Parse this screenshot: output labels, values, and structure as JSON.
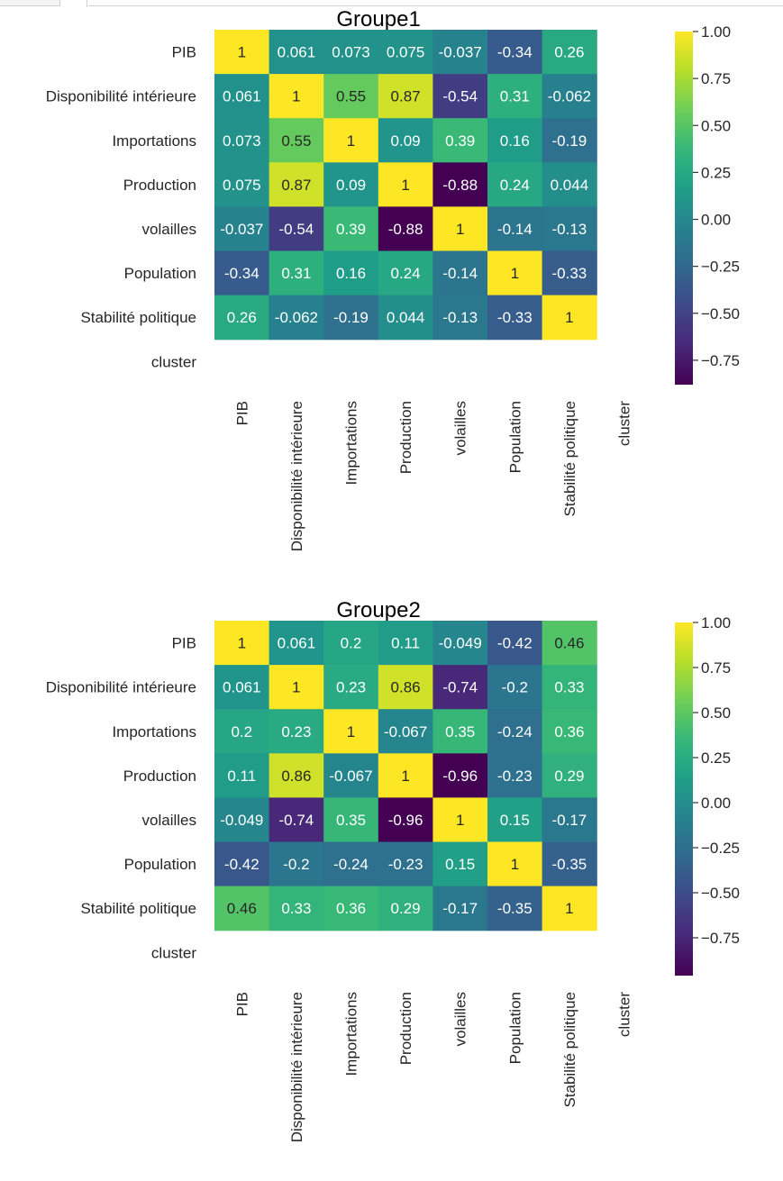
{
  "colormap": [
    "#440154",
    "#482878",
    "#3e4989",
    "#31688e",
    "#26828e",
    "#1f9e89",
    "#35b779",
    "#6ece58",
    "#b5de2b",
    "#fde725"
  ],
  "chart_data": [
    {
      "type": "heatmap",
      "title": "Groupe1",
      "row_labels": [
        "PIB",
        "Disponibilité intérieure",
        "Importations",
        "Production",
        "volailles",
        "Population",
        "Stabilité politique",
        "cluster"
      ],
      "col_labels": [
        "PIB",
        "Disponibilité intérieure",
        "Importations",
        "Production",
        "volailles",
        "Population",
        "Stabilité politique",
        "cluster"
      ],
      "cells": [
        [
          "1",
          "0.061",
          "0.073",
          "0.075",
          "-0.037",
          "-0.34",
          "0.26",
          null
        ],
        [
          "0.061",
          "1",
          "0.55",
          "0.87",
          "-0.54",
          "0.31",
          "-0.062",
          null
        ],
        [
          "0.073",
          "0.55",
          "1",
          "0.09",
          "0.39",
          "0.16",
          "-0.19",
          null
        ],
        [
          "0.075",
          "0.87",
          "0.09",
          "1",
          "-0.88",
          "0.24",
          "0.044",
          null
        ],
        [
          "-0.037",
          "-0.54",
          "0.39",
          "-0.88",
          "1",
          "-0.14",
          "-0.13",
          null
        ],
        [
          "-0.34",
          "0.31",
          "0.16",
          "0.24",
          "-0.14",
          "1",
          "-0.33",
          null
        ],
        [
          "0.26",
          "-0.062",
          "-0.19",
          "0.044",
          "-0.13",
          "-0.33",
          "1",
          null
        ],
        [
          null,
          null,
          null,
          null,
          null,
          null,
          null,
          null
        ]
      ],
      "colorbar_range": [
        -0.88,
        1.0
      ],
      "colorbar_ticks": [
        "1.00",
        "0.75",
        "0.50",
        "0.25",
        "0.00",
        "−0.25",
        "−0.50",
        "−0.75"
      ],
      "colorbar_tick_values": [
        1.0,
        0.75,
        0.5,
        0.25,
        0.0,
        -0.25,
        -0.5,
        -0.75
      ]
    },
    {
      "type": "heatmap",
      "title": "Groupe2",
      "row_labels": [
        "PIB",
        "Disponibilité intérieure",
        "Importations",
        "Production",
        "volailles",
        "Population",
        "Stabilité politique",
        "cluster"
      ],
      "col_labels": [
        "PIB",
        "Disponibilité intérieure",
        "Importations",
        "Production",
        "volailles",
        "Population",
        "Stabilité politique",
        "cluster"
      ],
      "cells": [
        [
          "1",
          "0.061",
          "0.2",
          "0.11",
          "-0.049",
          "-0.42",
          "0.46",
          null
        ],
        [
          "0.061",
          "1",
          "0.23",
          "0.86",
          "-0.74",
          "-0.2",
          "0.33",
          null
        ],
        [
          "0.2",
          "0.23",
          "1",
          "-0.067",
          "0.35",
          "-0.24",
          "0.36",
          null
        ],
        [
          "0.11",
          "0.86",
          "-0.067",
          "1",
          "-0.96",
          "-0.23",
          "0.29",
          null
        ],
        [
          "-0.049",
          "-0.74",
          "0.35",
          "-0.96",
          "1",
          "0.15",
          "-0.17",
          null
        ],
        [
          "-0.42",
          "-0.2",
          "-0.24",
          "-0.23",
          "0.15",
          "1",
          "-0.35",
          null
        ],
        [
          "0.46",
          "0.33",
          "0.36",
          "0.29",
          "-0.17",
          "-0.35",
          "1",
          null
        ],
        [
          null,
          null,
          null,
          null,
          null,
          null,
          null,
          null
        ]
      ],
      "colorbar_range": [
        -0.96,
        1.0
      ],
      "colorbar_ticks": [
        "1.00",
        "0.75",
        "0.50",
        "0.25",
        "0.00",
        "−0.25",
        "−0.50",
        "−0.75"
      ],
      "colorbar_tick_values": [
        1.0,
        0.75,
        0.5,
        0.25,
        0.0,
        -0.25,
        -0.5,
        -0.75
      ]
    }
  ]
}
